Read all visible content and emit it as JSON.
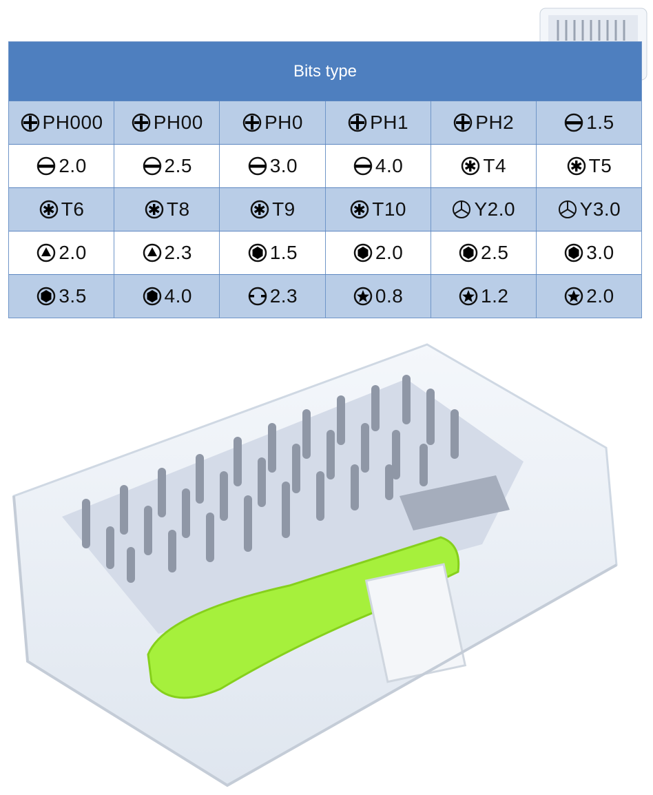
{
  "table": {
    "title": "Bits type",
    "rows": [
      [
        {
          "icon": "phillips-icon",
          "label": "PH000"
        },
        {
          "icon": "phillips-icon",
          "label": "PH00"
        },
        {
          "icon": "phillips-icon",
          "label": "PH0"
        },
        {
          "icon": "phillips-icon",
          "label": "PH1"
        },
        {
          "icon": "phillips-icon",
          "label": "PH2"
        },
        {
          "icon": "slotted-icon",
          "label": "1.5"
        }
      ],
      [
        {
          "icon": "slotted-icon",
          "label": "2.0"
        },
        {
          "icon": "slotted-icon",
          "label": "2.5"
        },
        {
          "icon": "slotted-icon",
          "label": "3.0"
        },
        {
          "icon": "slotted-icon",
          "label": "4.0"
        },
        {
          "icon": "torx-icon",
          "label": "T4"
        },
        {
          "icon": "torx-icon",
          "label": "T5"
        }
      ],
      [
        {
          "icon": "torx-icon",
          "label": "T6"
        },
        {
          "icon": "torx-icon",
          "label": "T8"
        },
        {
          "icon": "torx-icon",
          "label": "T9"
        },
        {
          "icon": "torx-icon",
          "label": "T10"
        },
        {
          "icon": "tri-wing-icon",
          "label": "Y2.0"
        },
        {
          "icon": "tri-wing-icon",
          "label": "Y3.0"
        }
      ],
      [
        {
          "icon": "triangle-icon",
          "label": "2.0"
        },
        {
          "icon": "triangle-icon",
          "label": "2.3"
        },
        {
          "icon": "hex-icon",
          "label": "1.5"
        },
        {
          "icon": "hex-icon",
          "label": "2.0"
        },
        {
          "icon": "hex-icon",
          "label": "2.5"
        },
        {
          "icon": "hex-icon",
          "label": "3.0"
        }
      ],
      [
        {
          "icon": "hex-icon",
          "label": "3.5"
        },
        {
          "icon": "hex-icon",
          "label": "4.0"
        },
        {
          "icon": "u-type-icon",
          "label": "2.3"
        },
        {
          "icon": "pentalobe-icon",
          "label": "0.8"
        },
        {
          "icon": "pentalobe-icon",
          "label": "1.2"
        },
        {
          "icon": "pentalobe-icon",
          "label": "2.0"
        }
      ]
    ]
  },
  "colors": {
    "header": "#4e7fbf",
    "row_blue": "#b9cde7",
    "handle": "#a6f03c"
  }
}
